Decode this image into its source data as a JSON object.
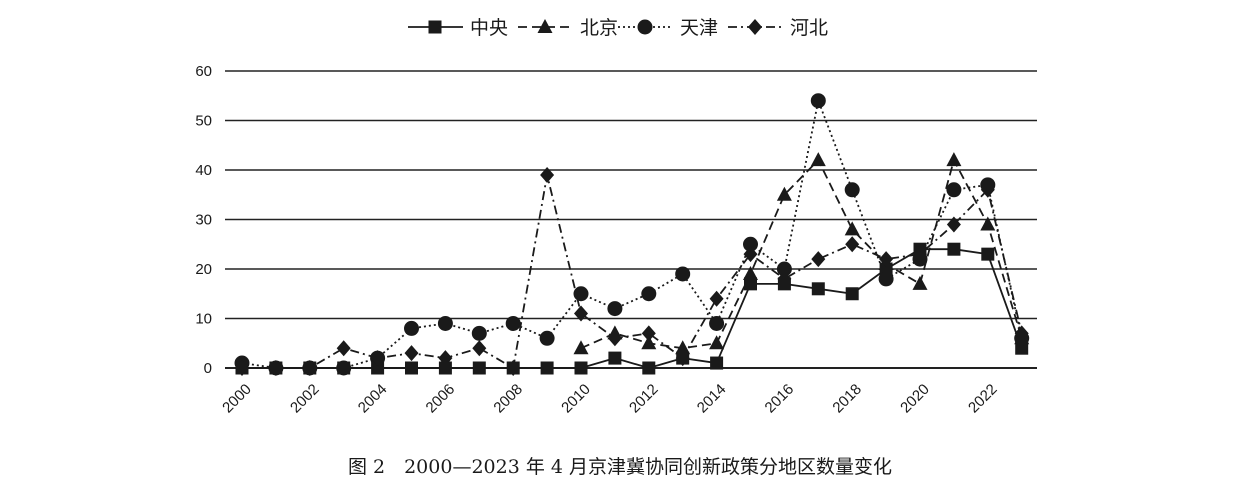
{
  "chart_data": {
    "type": "line",
    "caption": "图 2　2000—2023 年 4 月京津冀协同创新政策分地区数量变化",
    "x": [
      2000,
      2001,
      2002,
      2003,
      2004,
      2005,
      2006,
      2007,
      2008,
      2009,
      2010,
      2011,
      2012,
      2013,
      2014,
      2015,
      2016,
      2017,
      2018,
      2019,
      2020,
      2021,
      2022,
      2023
    ],
    "x_tick_labels": [
      "2000",
      "2002",
      "2004",
      "2006",
      "2008",
      "2010",
      "2012",
      "2014",
      "2016",
      "2018",
      "2020",
      "2022"
    ],
    "y_tick_labels": [
      "0",
      "10",
      "20",
      "30",
      "40",
      "50",
      "60"
    ],
    "ylim": [
      0,
      60
    ],
    "grid": "horizontal",
    "legend_position": "top",
    "series": [
      {
        "name": "中央",
        "marker": "square",
        "dash": "solid",
        "values": [
          0,
          0,
          0,
          0,
          0,
          0,
          0,
          0,
          0,
          0,
          0,
          2,
          0,
          2,
          1,
          17,
          17,
          16,
          15,
          20,
          24,
          24,
          23,
          4
        ]
      },
      {
        "name": "北京",
        "marker": "triangle",
        "dash": "dashed",
        "values": [
          null,
          null,
          null,
          null,
          null,
          null,
          null,
          null,
          null,
          null,
          4,
          7,
          5,
          4,
          5,
          19,
          35,
          42,
          28,
          21,
          17,
          42,
          29,
          6
        ]
      },
      {
        "name": "天津",
        "marker": "circle",
        "dash": "dotted",
        "values": [
          1,
          0,
          0,
          0,
          2,
          8,
          9,
          7,
          9,
          6,
          15,
          12,
          15,
          19,
          9,
          25,
          20,
          54,
          36,
          18,
          22,
          36,
          37,
          6
        ]
      },
      {
        "name": "河北",
        "marker": "diamond",
        "dash": "dashdot",
        "values": [
          0,
          0,
          0,
          4,
          2,
          3,
          2,
          4,
          0,
          39,
          11,
          6,
          7,
          2,
          14,
          23,
          18,
          22,
          25,
          22,
          23,
          29,
          36,
          7
        ]
      }
    ]
  }
}
